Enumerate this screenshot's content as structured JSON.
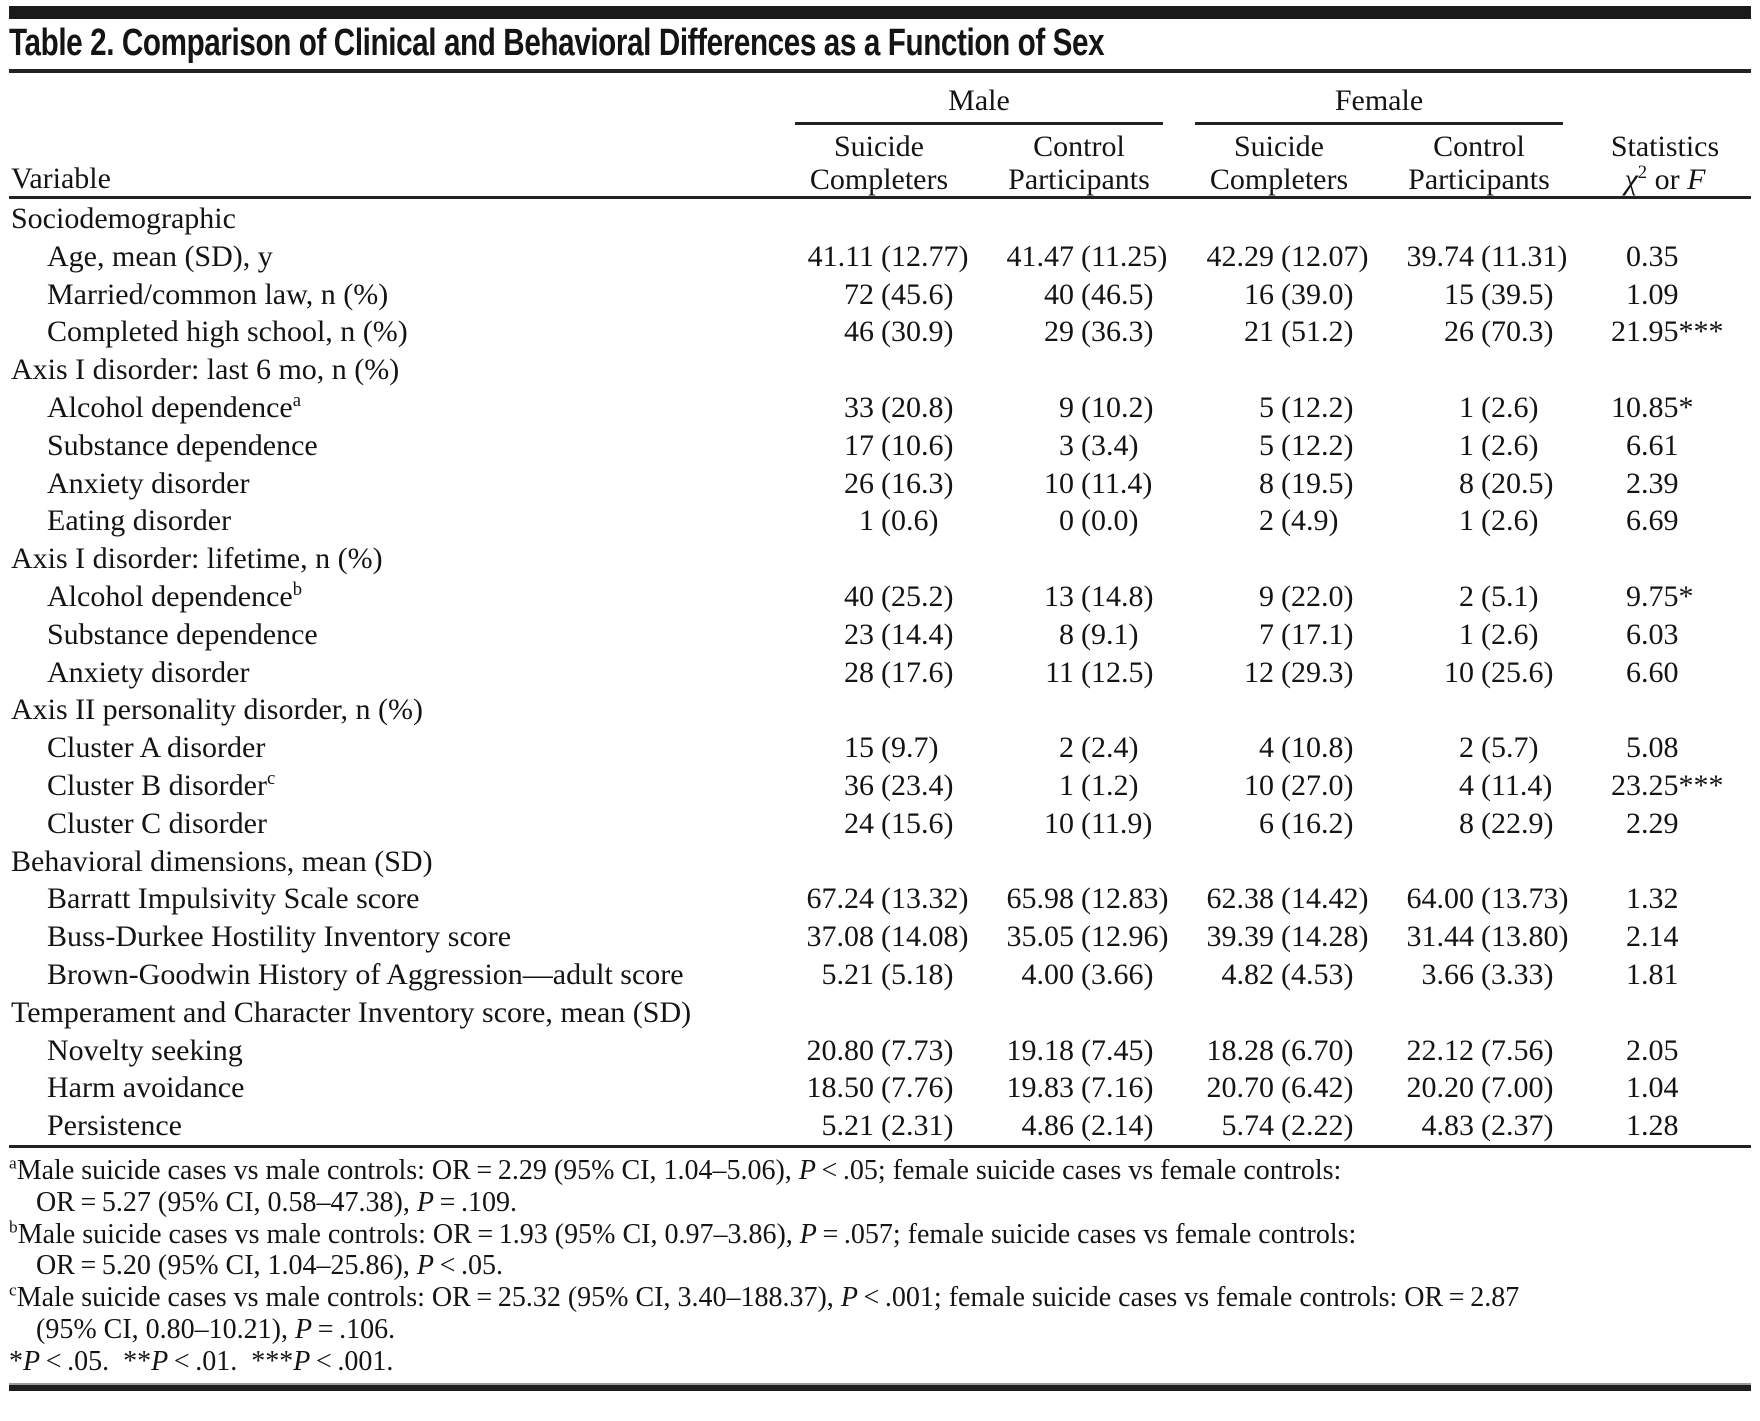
{
  "title": "Table 2. Comparison of Clinical and Behavioral Differences as a Function of Sex",
  "colors": {
    "ink": "#141414",
    "rule": "#222222"
  },
  "header": {
    "variable_label": "Variable",
    "groups": {
      "male": "Male",
      "female": "Female"
    },
    "columns": [
      {
        "line1": "Suicide",
        "line2": "Completers"
      },
      {
        "line1": "Control",
        "line2": "Participants"
      },
      {
        "line1": "Suicide",
        "line2": "Completers"
      },
      {
        "line1": "Control",
        "line2": "Participants"
      }
    ],
    "stats": {
      "line1": "Statistics",
      "chi": "χ",
      "chi_sup": "2",
      "or_text": " or ",
      "f": "F"
    }
  },
  "rows": [
    {
      "label": "Sociodemographic",
      "indent": false,
      "cells": [
        "",
        "",
        "",
        "",
        ""
      ]
    },
    {
      "label": "Age, mean (SD), y",
      "indent": true,
      "cells": [
        "41.11 (12.77)",
        "41.47 (11.25)",
        "42.29 (12.07)",
        "39.74 (11.31)",
        "0.35"
      ]
    },
    {
      "label": "Married/common law, n (%)",
      "indent": true,
      "cells": [
        "72 (45.6)",
        "40 (46.5)",
        "16 (39.0)",
        "15 (39.5)",
        "1.09"
      ]
    },
    {
      "label": "Completed high school, n (%)",
      "indent": true,
      "cells": [
        "46 (30.9)",
        "29 (36.3)",
        "21 (51.2)",
        "26 (70.3)",
        "21.95***"
      ]
    },
    {
      "label": "Axis I disorder: last 6 mo, n (%)",
      "indent": false,
      "cells": [
        "",
        "",
        "",
        "",
        ""
      ]
    },
    {
      "label": "Alcohol dependence",
      "sup": "a",
      "indent": true,
      "cells": [
        "33 (20.8)",
        "9 (10.2)",
        "5 (12.2)",
        "1 (2.6)",
        "10.85*"
      ]
    },
    {
      "label": "Substance dependence",
      "indent": true,
      "cells": [
        "17 (10.6)",
        "3 (3.4)",
        "5 (12.2)",
        "1 (2.6)",
        "6.61"
      ]
    },
    {
      "label": "Anxiety disorder",
      "indent": true,
      "cells": [
        "26 (16.3)",
        "10 (11.4)",
        "8 (19.5)",
        "8 (20.5)",
        "2.39"
      ]
    },
    {
      "label": "Eating disorder",
      "indent": true,
      "cells": [
        "1 (0.6)",
        "0 (0.0)",
        "2 (4.9)",
        "1 (2.6)",
        "6.69"
      ]
    },
    {
      "label": "Axis I disorder: lifetime, n (%)",
      "indent": false,
      "cells": [
        "",
        "",
        "",
        "",
        ""
      ]
    },
    {
      "label": "Alcohol dependence",
      "sup": "b",
      "indent": true,
      "cells": [
        "40 (25.2)",
        "13 (14.8)",
        "9 (22.0)",
        "2 (5.1)",
        "9.75*"
      ]
    },
    {
      "label": "Substance dependence",
      "indent": true,
      "cells": [
        "23 (14.4)",
        "8 (9.1)",
        "7 (17.1)",
        "1 (2.6)",
        "6.03"
      ]
    },
    {
      "label": "Anxiety disorder",
      "indent": true,
      "cells": [
        "28 (17.6)",
        "11 (12.5)",
        "12 (29.3)",
        "10 (25.6)",
        "6.60"
      ]
    },
    {
      "label": "Axis II personality disorder, n (%)",
      "indent": false,
      "cells": [
        "",
        "",
        "",
        "",
        ""
      ]
    },
    {
      "label": "Cluster A disorder",
      "indent": true,
      "cells": [
        "15 (9.7)",
        "2 (2.4)",
        "4 (10.8)",
        "2 (5.7)",
        "5.08"
      ]
    },
    {
      "label": "Cluster B disorder",
      "sup": "c",
      "indent": true,
      "cells": [
        "36 (23.4)",
        "1 (1.2)",
        "10 (27.0)",
        "4 (11.4)",
        "23.25***"
      ]
    },
    {
      "label": "Cluster C disorder",
      "indent": true,
      "cells": [
        "24 (15.6)",
        "10 (11.9)",
        "6 (16.2)",
        "8 (22.9)",
        "2.29"
      ]
    },
    {
      "label": "Behavioral dimensions, mean (SD)",
      "indent": false,
      "cells": [
        "",
        "",
        "",
        "",
        ""
      ]
    },
    {
      "label": "Barratt Impulsivity Scale score",
      "indent": true,
      "cells": [
        "67.24 (13.32)",
        "65.98 (12.83)",
        "62.38 (14.42)",
        "64.00 (13.73)",
        "1.32"
      ]
    },
    {
      "label": "Buss-Durkee Hostility Inventory score",
      "indent": true,
      "cells": [
        "37.08 (14.08)",
        "35.05 (12.96)",
        "39.39 (14.28)",
        "31.44 (13.80)",
        "2.14"
      ]
    },
    {
      "label": "Brown-Goodwin History of Aggression—adult score",
      "indent": true,
      "cells": [
        "5.21 (5.18)",
        "4.00 (3.66)",
        "4.82 (4.53)",
        "3.66 (3.33)",
        "1.81"
      ]
    },
    {
      "label": "Temperament and Character Inventory score, mean (SD)",
      "indent": false,
      "cells": [
        "",
        "",
        "",
        "",
        ""
      ]
    },
    {
      "label": "Novelty seeking",
      "indent": true,
      "cells": [
        "20.80 (7.73)",
        "19.18 (7.45)",
        "18.28 (6.70)",
        "22.12 (7.56)",
        "2.05"
      ]
    },
    {
      "label": "Harm avoidance",
      "indent": true,
      "cells": [
        "18.50 (7.76)",
        "19.83 (7.16)",
        "20.70 (6.42)",
        "20.20 (7.00)",
        "1.04"
      ]
    },
    {
      "label": "Persistence",
      "indent": true,
      "cells": [
        "5.21 (2.31)",
        "4.86 (2.14)",
        "5.74 (2.22)",
        "4.83 (2.37)",
        "1.28"
      ]
    }
  ],
  "footnotes": [
    {
      "marker": "a",
      "lines": [
        "Male suicide cases vs male controls: OR = 2.29 (95% CI, 1.04–5.06), P < .05; female suicide cases vs female controls:",
        "OR = 5.27 (95% CI, 0.58–47.38), P = .109."
      ]
    },
    {
      "marker": "b",
      "lines": [
        "Male suicide cases vs male controls: OR = 1.93 (95% CI, 0.97–3.86), P = .057; female suicide cases vs female controls:",
        "OR = 5.20 (95% CI, 1.04–25.86), P < .05."
      ]
    },
    {
      "marker": "c",
      "lines": [
        "Male suicide cases vs male controls: OR = 25.32 (95% CI, 3.40–188.37), P < .001; female suicide cases vs female controls: OR = 2.87",
        "(95% CI, 0.80–10.21), P = .106."
      ]
    },
    {
      "marker": "",
      "lines": [
        "*P < .05.  **P < .01.  ***P < .001."
      ]
    }
  ]
}
